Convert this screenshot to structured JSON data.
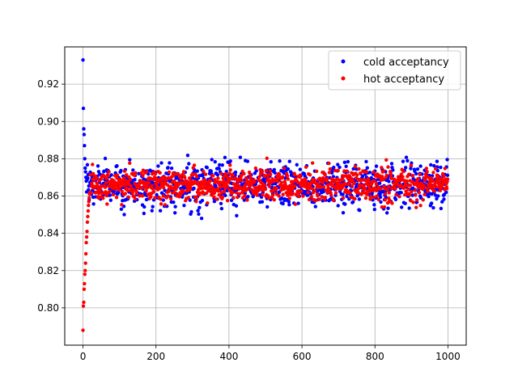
{
  "chart_data": {
    "type": "scatter",
    "title": "",
    "xlabel": "",
    "ylabel": "",
    "xlim": [
      -50,
      1050
    ],
    "ylim": [
      0.78,
      0.94
    ],
    "xticks": [
      0,
      200,
      400,
      600,
      800,
      1000
    ],
    "yticks": [
      0.8,
      0.82,
      0.84,
      0.86,
      0.88,
      0.9,
      0.92
    ],
    "grid": true,
    "legend_position": "top-right",
    "series": [
      {
        "name": "cold acceptancy",
        "color": "#0000ff",
        "n_points": 1000,
        "start_values": [
          0.933,
          0.907,
          0.896,
          0.893,
          0.887,
          0.88,
          0.875,
          0.873,
          0.87,
          0.868
        ],
        "steady_mean": 0.866,
        "steady_spread": 0.015,
        "steady_min": 0.848,
        "steady_max": 0.887
      },
      {
        "name": "hot acceptancy",
        "color": "#ff0000",
        "n_points": 1000,
        "start_values": [
          0.788,
          0.801,
          0.803,
          0.81,
          0.813,
          0.818,
          0.82,
          0.824,
          0.829,
          0.835,
          0.838,
          0.841,
          0.846,
          0.849,
          0.852,
          0.855,
          0.857,
          0.859,
          0.861,
          0.862
        ],
        "steady_mean": 0.866,
        "steady_spread": 0.011,
        "steady_min": 0.849,
        "steady_max": 0.884
      }
    ]
  }
}
